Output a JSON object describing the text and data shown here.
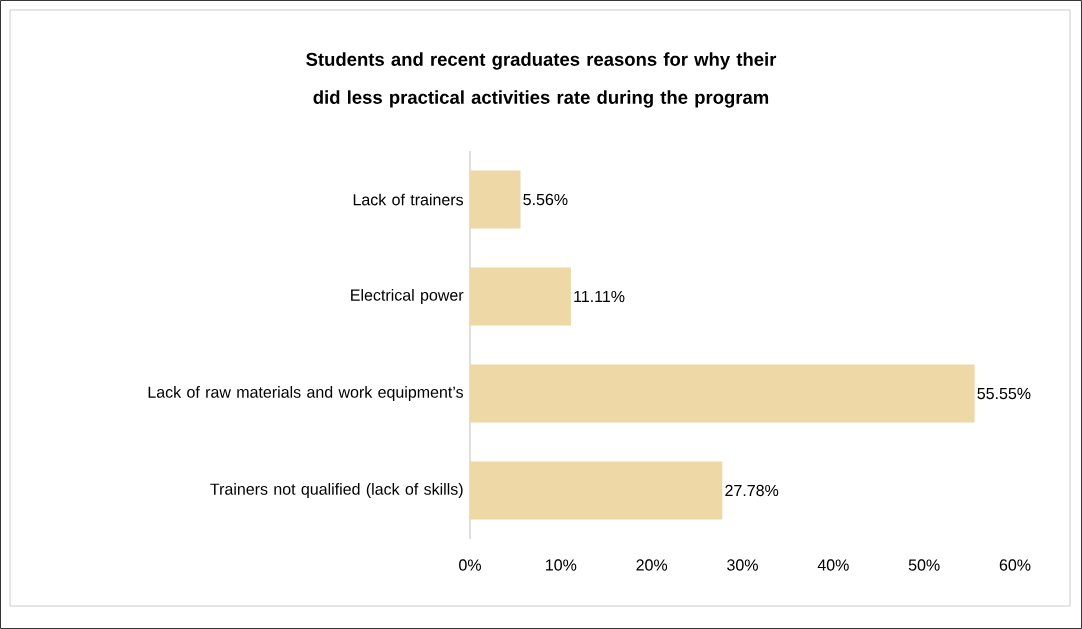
{
  "chart_data": {
    "type": "bar",
    "orientation": "horizontal",
    "title": "Students and recent graduates reasons for why their did less practical activities rate during the program",
    "categories": [
      "Lack of trainers",
      "Electrical power",
      "Lack of raw materials and work equipment’s",
      "Trainers not qualified (lack of skills)"
    ],
    "values": [
      5.56,
      11.11,
      55.55,
      27.78
    ],
    "value_labels": [
      "5.56%",
      "11.11%",
      "55.55%",
      "27.78%"
    ],
    "color": "#eed8a6",
    "xlim": [
      0,
      60
    ],
    "xticks": [
      {
        "value": 0,
        "label": "0%"
      },
      {
        "value": 10,
        "label": "10%"
      },
      {
        "value": 20,
        "label": "20%"
      },
      {
        "value": 30,
        "label": "30%"
      },
      {
        "value": 40,
        "label": "40%"
      },
      {
        "value": 50,
        "label": "50%"
      },
      {
        "value": 60,
        "label": "60%"
      }
    ],
    "grid": false
  }
}
